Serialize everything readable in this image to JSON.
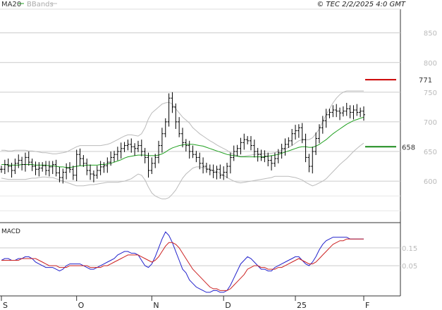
{
  "legend": {
    "ma_label": "MA20",
    "bb_label": "BBands"
  },
  "header": {
    "source": "© TEC 2/2/2025 4:0 GMT"
  },
  "macd_panel": {
    "title": "MACD"
  },
  "colors": {
    "candle": "#000000",
    "ma20": "#1fa01f",
    "bbands": "#bbbbbb",
    "grid": "#cccccc",
    "resistance": "#cc0000",
    "support": "#1a8a1a",
    "macd_line": "#2222cc",
    "signal_line": "#cc2222"
  },
  "chart_data": [
    {
      "type": "line",
      "subtype": "ohlc-bars-with-ma20-bollinger",
      "y_axis_ticks": [
        600,
        650,
        700,
        750,
        800,
        850
      ],
      "ylim": [
        530,
        890
      ],
      "x_labels": [
        "S",
        "O",
        "N",
        "D",
        "25",
        "F"
      ],
      "x_label_bars": [
        0,
        22,
        44,
        65,
        86,
        107
      ],
      "n_bars": 107,
      "levels": [
        {
          "name": "resistance",
          "value": 771,
          "label": "771"
        },
        {
          "name": "support",
          "value": 658,
          "label": "658"
        }
      ],
      "close": [
        620,
        628,
        625,
        618,
        630,
        635,
        628,
        640,
        632,
        625,
        620,
        622,
        626,
        618,
        624,
        628,
        614,
        606,
        615,
        622,
        620,
        610,
        645,
        638,
        630,
        618,
        612,
        610,
        618,
        624,
        626,
        632,
        640,
        645,
        650,
        655,
        660,
        662,
        658,
        655,
        660,
        650,
        640,
        618,
        630,
        640,
        660,
        680,
        700,
        740,
        725,
        700,
        680,
        665,
        660,
        650,
        645,
        640,
        630,
        625,
        620,
        618,
        615,
        620,
        610,
        615,
        625,
        640,
        650,
        655,
        665,
        670,
        668,
        660,
        650,
        645,
        640,
        642,
        635,
        630,
        638,
        648,
        655,
        662,
        668,
        680,
        685,
        690,
        670,
        640,
        625,
        650,
        672,
        690,
        702,
        712,
        716,
        720,
        718,
        715,
        718,
        722,
        716,
        720,
        716,
        718,
        712
      ],
      "ma20": [
        628,
        628,
        627,
        627,
        627,
        627,
        628,
        628,
        628,
        628,
        627,
        627,
        627,
        627,
        626,
        626,
        625,
        624,
        624,
        623,
        623,
        624,
        625,
        626,
        626,
        627,
        627,
        627,
        627,
        628,
        628,
        629,
        630,
        632,
        634,
        636,
        639,
        641,
        642,
        643,
        644,
        644,
        644,
        643,
        643,
        643,
        644,
        646,
        649,
        653,
        656,
        658,
        660,
        661,
        662,
        662,
        662,
        661,
        660,
        659,
        657,
        655,
        653,
        651,
        649,
        647,
        645,
        644,
        643,
        642,
        641,
        641,
        641,
        641,
        641,
        641,
        641,
        641,
        642,
        643,
        644,
        645,
        647,
        649,
        651,
        653,
        655,
        657,
        658,
        658,
        657,
        657,
        659,
        662,
        666,
        670,
        675,
        680,
        684,
        688,
        692,
        696,
        699,
        702,
        704,
        706,
        708
      ],
      "bb_upper": [
        652,
        652,
        651,
        651,
        652,
        652,
        652,
        652,
        651,
        651,
        650,
        649,
        648,
        648,
        647,
        646,
        646,
        647,
        648,
        649,
        652,
        655,
        658,
        660,
        660,
        660,
        660,
        660,
        660,
        660,
        661,
        662,
        664,
        667,
        670,
        673,
        676,
        678,
        678,
        677,
        676,
        680,
        690,
        705,
        715,
        720,
        725,
        730,
        732,
        733,
        730,
        722,
        715,
        708,
        703,
        698,
        690,
        685,
        680,
        676,
        672,
        668,
        665,
        661,
        658,
        655,
        652,
        648,
        645,
        643,
        642,
        642,
        643,
        644,
        645,
        646,
        646,
        646,
        646,
        647,
        648,
        650,
        652,
        654,
        657,
        660,
        664,
        668,
        670,
        670,
        670,
        673,
        680,
        688,
        700,
        712,
        722,
        732,
        740,
        746,
        750,
        752,
        752,
        752,
        752,
        752,
        752
      ],
      "bb_lower": [
        605,
        604,
        603,
        603,
        603,
        603,
        603,
        603,
        604,
        605,
        605,
        606,
        607,
        607,
        606,
        606,
        604,
        602,
        600,
        598,
        596,
        594,
        592,
        592,
        592,
        593,
        594,
        594,
        595,
        596,
        597,
        598,
        598,
        598,
        598,
        599,
        600,
        602,
        604,
        608,
        612,
        610,
        602,
        590,
        580,
        575,
        572,
        570,
        570,
        572,
        578,
        585,
        595,
        605,
        612,
        617,
        622,
        624,
        624,
        623,
        622,
        620,
        618,
        616,
        613,
        610,
        606,
        603,
        600,
        598,
        597,
        598,
        599,
        600,
        601,
        602,
        603,
        604,
        605,
        606,
        608,
        608,
        608,
        608,
        608,
        607,
        606,
        604,
        602,
        598,
        595,
        592,
        594,
        597,
        600,
        604,
        610,
        616,
        622,
        628,
        633,
        638,
        644,
        650,
        655,
        660,
        664
      ],
      "macd_ylim": [
        -0.12,
        0.28
      ],
      "macd_ticks": [
        0.05,
        0.15
      ],
      "macd_tick_labels": [
        "0.05",
        "0.15"
      ],
      "macd": [
        0.08,
        0.09,
        0.09,
        0.08,
        0.08,
        0.09,
        0.09,
        0.1,
        0.1,
        0.09,
        0.07,
        0.06,
        0.05,
        0.04,
        0.04,
        0.04,
        0.03,
        0.02,
        0.03,
        0.05,
        0.06,
        0.06,
        0.06,
        0.06,
        0.05,
        0.04,
        0.03,
        0.03,
        0.04,
        0.05,
        0.06,
        0.07,
        0.08,
        0.09,
        0.11,
        0.12,
        0.13,
        0.13,
        0.12,
        0.12,
        0.11,
        0.08,
        0.05,
        0.04,
        0.06,
        0.1,
        0.15,
        0.2,
        0.24,
        0.22,
        0.18,
        0.13,
        0.08,
        0.03,
        0.01,
        -0.03,
        -0.05,
        -0.07,
        -0.08,
        -0.09,
        -0.1,
        -0.1,
        -0.09,
        -0.09,
        -0.1,
        -0.1,
        -0.09,
        -0.06,
        -0.02,
        0.02,
        0.06,
        0.08,
        0.1,
        0.09,
        0.07,
        0.05,
        0.03,
        0.03,
        0.02,
        0.02,
        0.04,
        0.05,
        0.06,
        0.07,
        0.08,
        0.09,
        0.1,
        0.1,
        0.08,
        0.06,
        0.05,
        0.07,
        0.1,
        0.14,
        0.17,
        0.19,
        0.2,
        0.21,
        0.21,
        0.21,
        0.21,
        0.21,
        0.2,
        0.2,
        0.2,
        0.2,
        0.2
      ],
      "signal": [
        0.08,
        0.08,
        0.08,
        0.08,
        0.08,
        0.08,
        0.09,
        0.09,
        0.09,
        0.09,
        0.09,
        0.08,
        0.07,
        0.06,
        0.05,
        0.05,
        0.05,
        0.04,
        0.04,
        0.04,
        0.05,
        0.05,
        0.05,
        0.05,
        0.05,
        0.05,
        0.04,
        0.04,
        0.04,
        0.04,
        0.05,
        0.05,
        0.06,
        0.07,
        0.08,
        0.09,
        0.1,
        0.11,
        0.11,
        0.11,
        0.11,
        0.1,
        0.09,
        0.08,
        0.07,
        0.08,
        0.1,
        0.13,
        0.16,
        0.18,
        0.18,
        0.17,
        0.15,
        0.12,
        0.09,
        0.06,
        0.03,
        0.01,
        -0.01,
        -0.03,
        -0.05,
        -0.07,
        -0.08,
        -0.08,
        -0.09,
        -0.09,
        -0.09,
        -0.08,
        -0.06,
        -0.04,
        -0.02,
        0.0,
        0.03,
        0.04,
        0.05,
        0.05,
        0.04,
        0.04,
        0.03,
        0.03,
        0.03,
        0.04,
        0.04,
        0.05,
        0.06,
        0.07,
        0.08,
        0.09,
        0.08,
        0.07,
        0.06,
        0.06,
        0.07,
        0.09,
        0.11,
        0.13,
        0.15,
        0.17,
        0.18,
        0.19,
        0.19,
        0.2,
        0.2,
        0.2,
        0.2,
        0.2,
        0.2
      ]
    }
  ]
}
